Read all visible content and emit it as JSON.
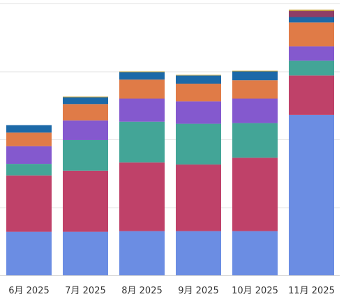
{
  "chart_data": {
    "type": "bar",
    "stacked": true,
    "categories": [
      "6月 2025",
      "7月 2025",
      "8月 2025",
      "9月 2025",
      "10月 2025",
      "11月 2025"
    ],
    "ylim": [
      0,
      400
    ],
    "gridlines_at": [
      100,
      200,
      300,
      400
    ],
    "y_tick_labels_visible": false,
    "legend": "none",
    "series": [
      {
        "color": "#6b8de3",
        "values": [
          64,
          64,
          65,
          65,
          65,
          236
        ]
      },
      {
        "color": "#bf4169",
        "values": [
          83,
          90,
          101,
          98,
          108,
          58
        ]
      },
      {
        "color": "#43a597",
        "values": [
          17,
          45,
          60,
          60,
          51,
          22
        ]
      },
      {
        "color": "#8459ce",
        "values": [
          26,
          29,
          34,
          33,
          36,
          21
        ]
      },
      {
        "color": "#e07b47",
        "values": [
          20,
          24,
          28,
          26,
          27,
          35
        ]
      },
      {
        "color": "#1c69a8",
        "values": [
          11,
          10,
          11,
          12,
          13,
          8
        ]
      },
      {
        "color": "#8e3e66",
        "values": [
          0,
          0,
          0,
          0,
          0,
          9
        ]
      },
      {
        "color": "#c7a437",
        "values": [
          0,
          1,
          1,
          1,
          1,
          2
        ]
      }
    ]
  }
}
